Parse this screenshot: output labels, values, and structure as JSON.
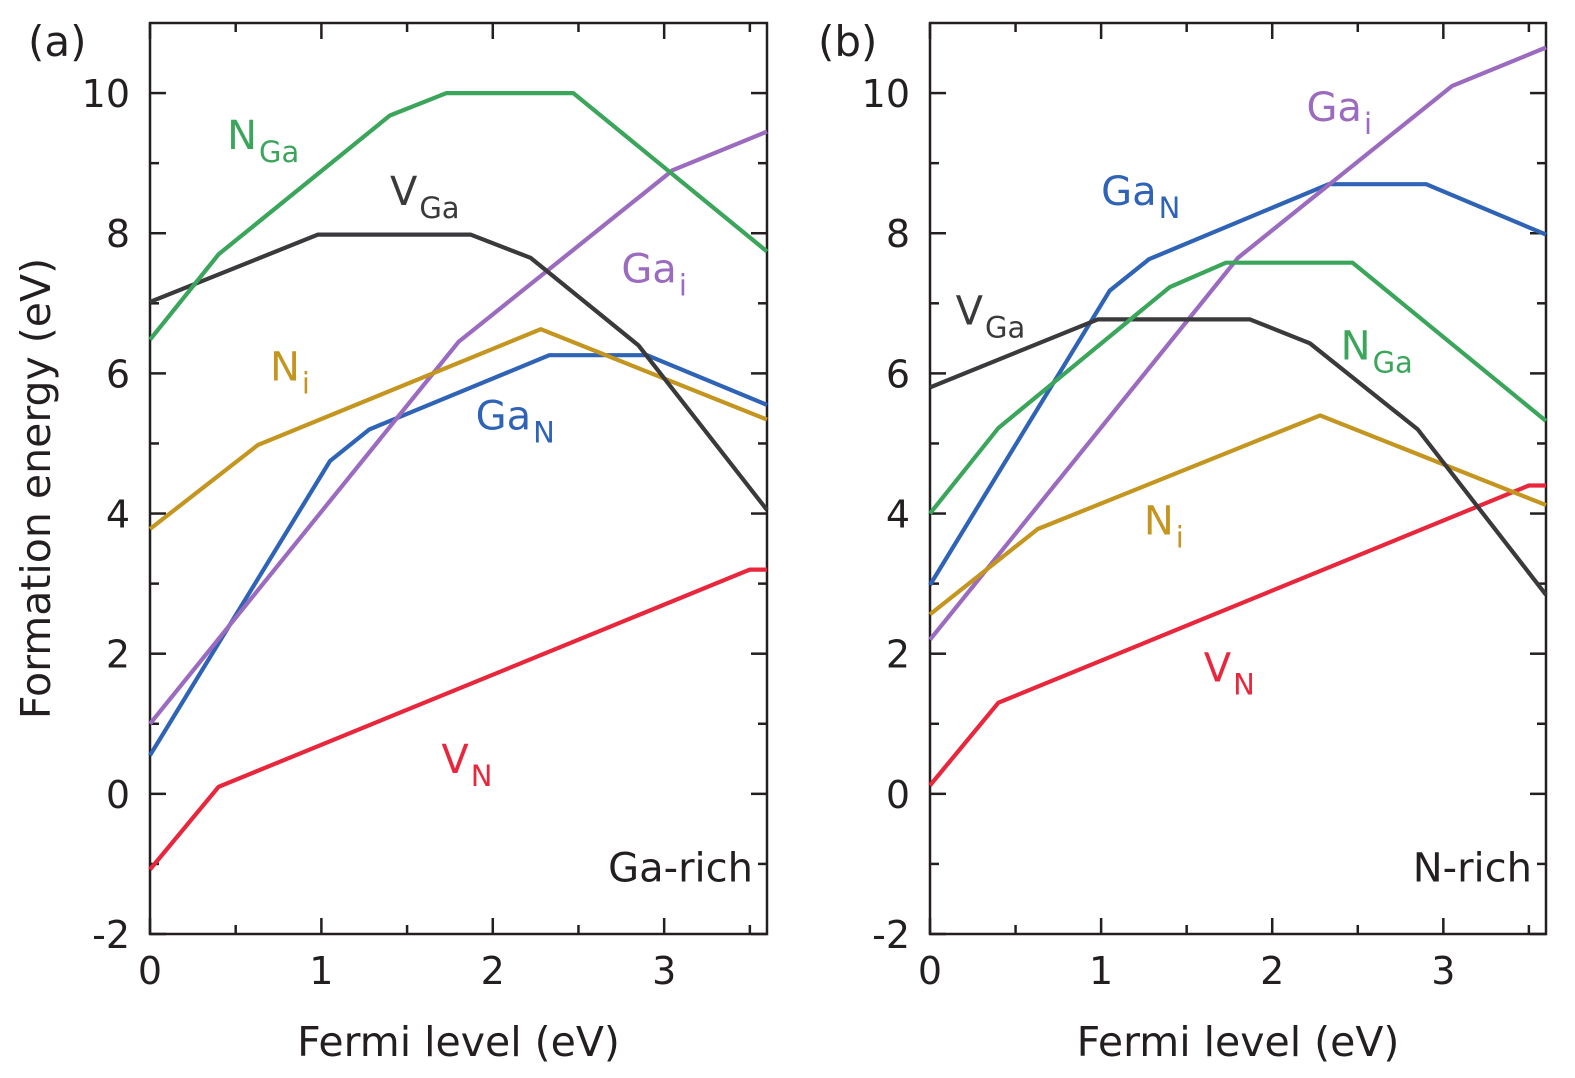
{
  "colors": {
    "V_N": "#e8263c",
    "Ga_N": "#2f63b6",
    "Ga_i": "#9b6bbf",
    "N_i": "#c49620",
    "V_Ga": "#3a3a3c",
    "N_Ga": "#3aa55b"
  },
  "chart_data": [
    {
      "type": "line",
      "panel_label": "(a)",
      "condition": "Ga-rich",
      "xlabel": "Fermi level (eV)",
      "ylabel": "Formation energy (eV)",
      "xlim": [
        0,
        3.6
      ],
      "ylim": [
        -2,
        11
      ],
      "xticks": [
        "0",
        "1",
        "2",
        "3"
      ],
      "yticks": [
        "-2",
        "0",
        "2",
        "4",
        "6",
        "8",
        "10"
      ],
      "series": [
        {
          "key": "V_N",
          "label_base": "V",
          "label_sub": "N",
          "points": [
            [
              0,
              -1.08
            ],
            [
              0.4,
              0.1
            ],
            [
              3.5,
              3.2
            ],
            [
              3.6,
              3.2
            ]
          ]
        },
        {
          "key": "Ga_N",
          "label_base": "Ga",
          "label_sub": "N",
          "points": [
            [
              0,
              0.55
            ],
            [
              1.05,
              4.75
            ],
            [
              1.28,
              5.2
            ],
            [
              2.33,
              6.26
            ],
            [
              2.9,
              6.26
            ],
            [
              3.6,
              5.55
            ]
          ]
        },
        {
          "key": "Ga_i",
          "label_base": "Ga",
          "label_sub": "i",
          "points": [
            [
              0,
              1.0
            ],
            [
              1.8,
              6.45
            ],
            [
              3.05,
              8.9
            ],
            [
              3.6,
              9.45
            ]
          ]
        },
        {
          "key": "N_i",
          "label_base": "N",
          "label_sub": "i",
          "points": [
            [
              0,
              3.78
            ],
            [
              0.63,
              4.98
            ],
            [
              2.28,
              6.63
            ],
            [
              3.6,
              5.34
            ]
          ]
        },
        {
          "key": "V_Ga",
          "label_base": "V",
          "label_sub": "Ga",
          "points": [
            [
              0,
              7.02
            ],
            [
              0.98,
              7.98
            ],
            [
              1.87,
              7.98
            ],
            [
              2.22,
              7.65
            ],
            [
              2.85,
              6.4
            ],
            [
              3.6,
              4.05
            ]
          ]
        },
        {
          "key": "N_Ga",
          "label_base": "N",
          "label_sub": "Ga",
          "points": [
            [
              0,
              6.48
            ],
            [
              0.4,
              7.7
            ],
            [
              1.4,
              9.68
            ],
            [
              1.73,
              10.0
            ],
            [
              2.47,
              10.0
            ],
            [
              3.6,
              7.74
            ]
          ]
        }
      ],
      "labels": [
        {
          "key": "N_Ga",
          "x": 0.45,
          "y": 9.2
        },
        {
          "key": "V_Ga",
          "x": 1.4,
          "y": 8.4
        },
        {
          "key": "Ga_i",
          "x": 2.75,
          "y": 7.3
        },
        {
          "key": "N_i",
          "x": 0.7,
          "y": 5.9
        },
        {
          "key": "Ga_N",
          "x": 1.9,
          "y": 5.2
        },
        {
          "key": "V_N",
          "x": 1.7,
          "y": 0.3
        }
      ]
    },
    {
      "type": "line",
      "panel_label": "(b)",
      "condition": "N-rich",
      "xlabel": "Fermi level (eV)",
      "ylabel": "",
      "xlim": [
        0,
        3.6
      ],
      "ylim": [
        -2,
        11
      ],
      "xticks": [
        "0",
        "1",
        "2",
        "3"
      ],
      "yticks": [
        "-2",
        "0",
        "2",
        "4",
        "6",
        "8",
        "10"
      ],
      "series": [
        {
          "key": "V_N",
          "label_base": "V",
          "label_sub": "N",
          "points": [
            [
              0,
              0.12
            ],
            [
              0.4,
              1.3
            ],
            [
              3.5,
              4.4
            ],
            [
              3.6,
              4.4
            ]
          ]
        },
        {
          "key": "Ga_N",
          "label_base": "Ga",
          "label_sub": "N",
          "points": [
            [
              0,
              2.98
            ],
            [
              1.05,
              7.18
            ],
            [
              1.28,
              7.63
            ],
            [
              2.33,
              8.7
            ],
            [
              2.9,
              8.7
            ],
            [
              3.6,
              7.98
            ]
          ]
        },
        {
          "key": "Ga_i",
          "label_base": "Ga",
          "label_sub": "i",
          "points": [
            [
              0,
              2.2
            ],
            [
              1.8,
              7.65
            ],
            [
              3.05,
              10.1
            ],
            [
              3.6,
              10.65
            ]
          ]
        },
        {
          "key": "N_i",
          "label_base": "N",
          "label_sub": "i",
          "points": [
            [
              0,
              2.56
            ],
            [
              0.63,
              3.78
            ],
            [
              2.28,
              5.4
            ],
            [
              3.6,
              4.12
            ]
          ]
        },
        {
          "key": "V_Ga",
          "label_base": "V",
          "label_sub": "Ga",
          "points": [
            [
              0,
              5.8
            ],
            [
              0.98,
              6.77
            ],
            [
              1.87,
              6.77
            ],
            [
              2.22,
              6.43
            ],
            [
              2.85,
              5.2
            ],
            [
              3.6,
              2.84
            ]
          ]
        },
        {
          "key": "N_Ga",
          "label_base": "N",
          "label_sub": "Ga",
          "points": [
            [
              0,
              4.0
            ],
            [
              0.4,
              5.22
            ],
            [
              1.4,
              7.23
            ],
            [
              1.73,
              7.58
            ],
            [
              2.47,
              7.58
            ],
            [
              3.6,
              5.32
            ]
          ]
        }
      ],
      "labels": [
        {
          "key": "Ga_i",
          "x": 2.2,
          "y": 9.6
        },
        {
          "key": "Ga_N",
          "x": 1.0,
          "y": 8.4
        },
        {
          "key": "V_Ga",
          "x": 0.15,
          "y": 6.7
        },
        {
          "key": "N_Ga",
          "x": 2.4,
          "y": 6.2
        },
        {
          "key": "N_i",
          "x": 1.25,
          "y": 3.7
        },
        {
          "key": "V_N",
          "x": 1.6,
          "y": 1.6
        }
      ]
    }
  ]
}
